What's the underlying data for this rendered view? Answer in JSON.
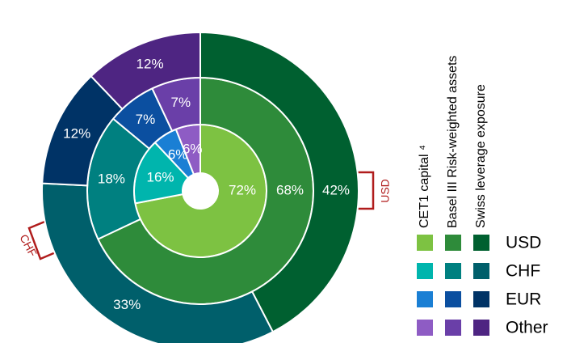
{
  "chart_data": {
    "type": "donut",
    "categories": [
      "USD",
      "CHF",
      "EUR",
      "Other"
    ],
    "series": [
      {
        "name": "CET1 capital ⁴",
        "colors": [
          "#7dc242",
          "#00b5ad",
          "#1a7fd4",
          "#8e5cc4"
        ],
        "values": [
          72,
          16,
          6,
          6
        ],
        "value_labels": [
          "72%",
          "16%",
          "6%",
          "6%"
        ]
      },
      {
        "name": "Basel III Risk-weighted assets",
        "colors": [
          "#2e8b3a",
          "#008080",
          "#0b4fa0",
          "#6a3fa8"
        ],
        "values": [
          68,
          18,
          7,
          7
        ],
        "value_labels": [
          "68%",
          "18%",
          "7%",
          "7%"
        ]
      },
      {
        "name": "Swiss leverage exposure",
        "colors": [
          "#006030",
          "#005f6b",
          "#003366",
          "#4e2582"
        ],
        "values": [
          42,
          33,
          12,
          12
        ],
        "value_labels": [
          "42%",
          "33%",
          "12%",
          "12%"
        ]
      }
    ],
    "annotations": [
      "USD",
      "CHF"
    ]
  }
}
